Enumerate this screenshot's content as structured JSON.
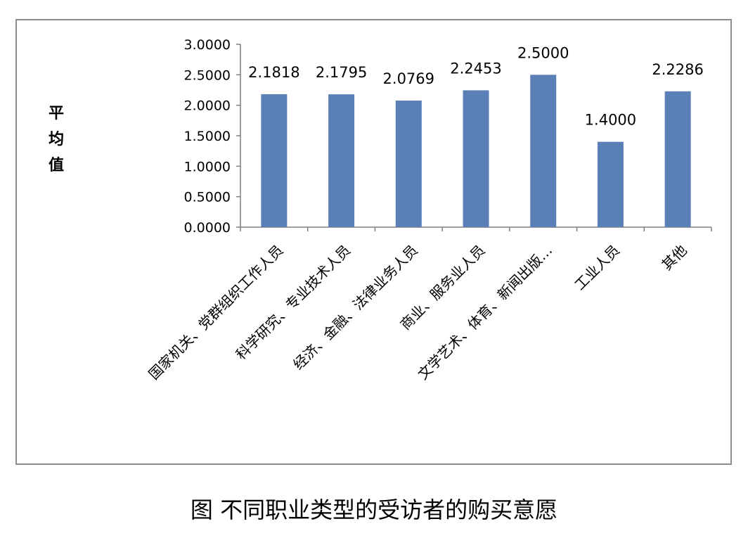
{
  "caption": "图 不同职业类型的受访者的购买意愿",
  "colors": {
    "bar": "#5b80b8",
    "axis": "#7f7f7f",
    "frame": "#8c8c8c"
  },
  "chart_data": {
    "type": "bar",
    "title": "",
    "xlabel": "",
    "ylabel": "平均值",
    "ylim": [
      0,
      3
    ],
    "y_ticks": [
      "0.0000",
      "0.5000",
      "1.0000",
      "1.5000",
      "2.0000",
      "2.5000",
      "3.0000"
    ],
    "grid": false,
    "legend": "none",
    "categories": [
      "国家机关、党群组织工作人员",
      "科学研究、专业技术人员",
      "经济、金融、法律业务人员",
      "商业、服务业人员",
      "文学艺术、体育、新闻出版…",
      "工业人员",
      "其他"
    ],
    "values": [
      2.1818,
      2.1795,
      2.0769,
      2.2453,
      2.5,
      1.4,
      2.2286
    ],
    "data_labels": [
      "2.1818",
      "2.1795",
      "2.0769",
      "2.2453",
      "2.5000",
      "1.4000",
      "2.2286"
    ]
  }
}
